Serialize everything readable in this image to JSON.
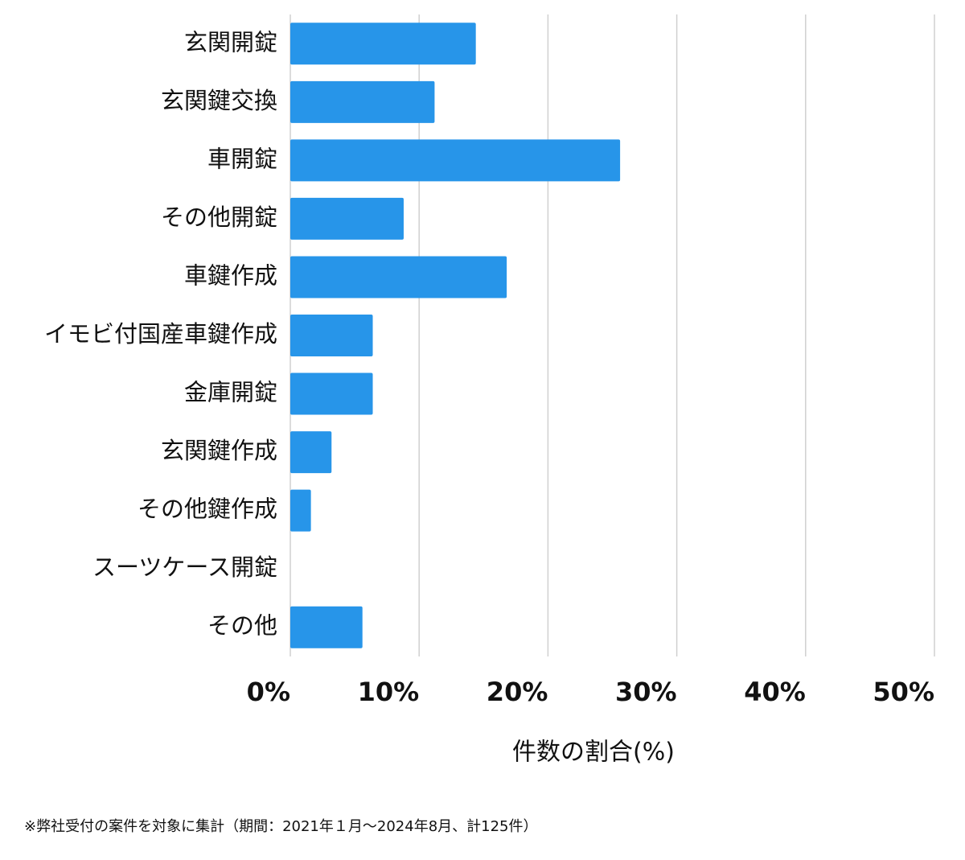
{
  "chart_data": {
    "type": "bar",
    "orientation": "horizontal",
    "categories": [
      "玄関開錠",
      "玄関鍵交換",
      "車開錠",
      "その他開錠",
      "車鍵作成",
      "イモビ付国産車鍵作成",
      "金庫開錠",
      "玄関鍵作成",
      "その他鍵作成",
      "スーツケース開錠",
      "その他"
    ],
    "values": [
      14.4,
      11.2,
      25.6,
      8.8,
      16.8,
      6.4,
      6.4,
      3.2,
      1.6,
      0,
      5.6
    ],
    "color": "#2795e9",
    "xlim": [
      0,
      50
    ],
    "xticks": [
      {
        "value": 0,
        "label": "0%"
      },
      {
        "value": 10,
        "label": "10%"
      },
      {
        "value": 20,
        "label": "20%"
      },
      {
        "value": 30,
        "label": "30%"
      },
      {
        "value": 40,
        "label": "40%"
      },
      {
        "value": 50,
        "label": "50%"
      }
    ],
    "grid": true,
    "xlabel": "件数の割合(%)",
    "footnote": "※弊社受付の案件を対象に集計（期間：2021年１月〜2024年8月、計125件）"
  }
}
